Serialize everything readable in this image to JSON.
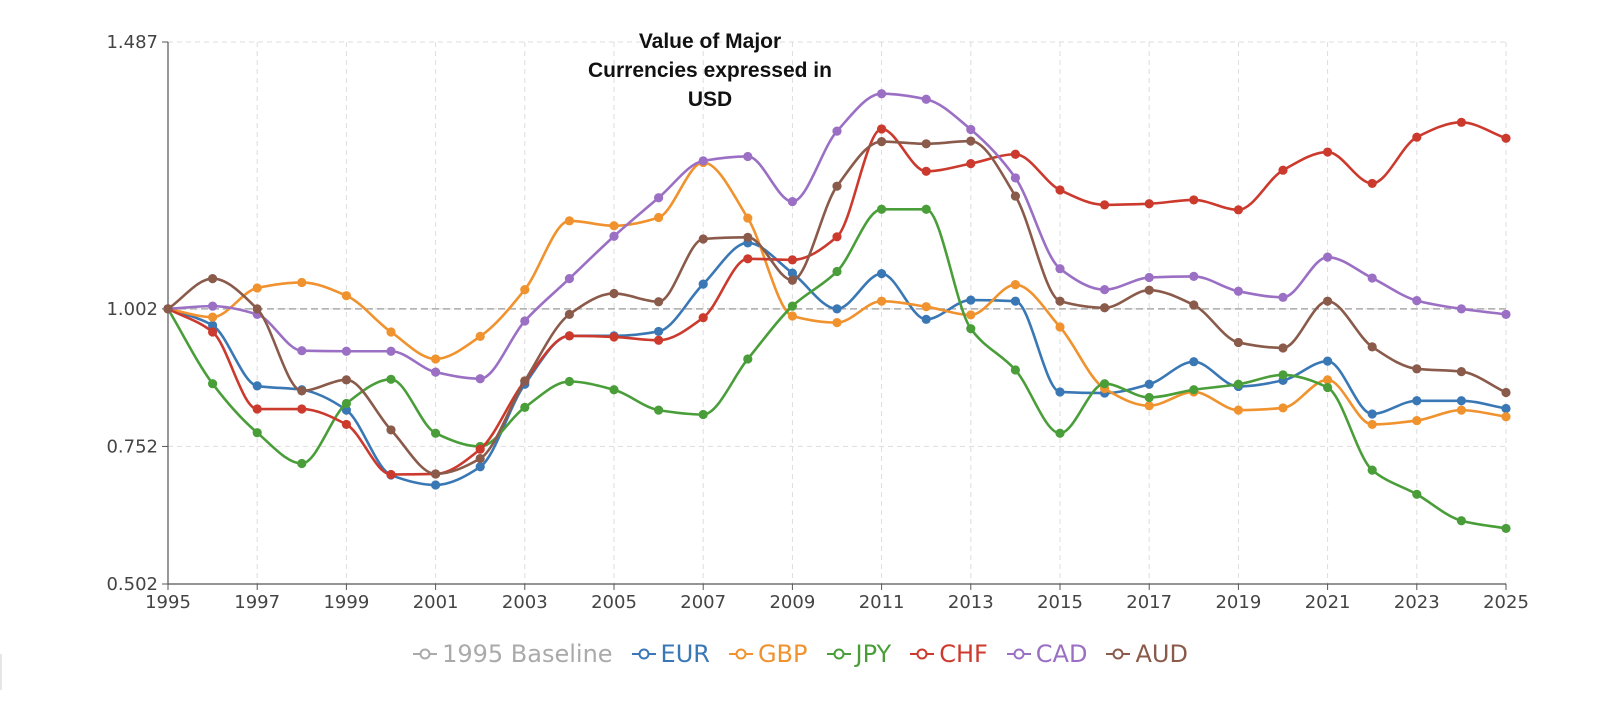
{
  "chart_data": {
    "type": "line",
    "title_lines": [
      "Value of  Major",
      "Currencies expressed in",
      "USD"
    ],
    "xlabel": "",
    "ylabel": "",
    "xlim": [
      1995,
      2025
    ],
    "ylim": [
      0.502,
      1.487
    ],
    "y_ticks": [
      "0.502",
      "0.752",
      "1.002",
      "1.487"
    ],
    "x_ticks": [
      "1995",
      "1997",
      "1999",
      "2001",
      "2003",
      "2005",
      "2007",
      "2009",
      "2011",
      "2013",
      "2015",
      "2017",
      "2019",
      "2021",
      "2023",
      "2025"
    ],
    "grid": true,
    "legend_position": "bottom-center",
    "baseline": {
      "name": "1995 Baseline",
      "value": 1.002,
      "color": "#aaaaaa"
    },
    "x": [
      1995,
      1996,
      1997,
      1998,
      1999,
      2000,
      2001,
      2002,
      2003,
      2004,
      2005,
      2006,
      2007,
      2008,
      2009,
      2010,
      2011,
      2012,
      2013,
      2014,
      2015,
      2016,
      2017,
      2018,
      2019,
      2020,
      2021,
      2022,
      2023,
      2024,
      2025
    ],
    "series": [
      {
        "name": "EUR",
        "color": "#3a78b5",
        "values": [
          1.002,
          0.972,
          0.862,
          0.855,
          0.818,
          0.7,
          0.682,
          0.715,
          0.865,
          0.953,
          0.953,
          0.961,
          1.047,
          1.122,
          1.067,
          1.002,
          1.066,
          0.983,
          1.018,
          1.016,
          0.851,
          0.849,
          0.865,
          0.906,
          0.861,
          0.872,
          0.907,
          0.811,
          0.835,
          0.835,
          0.821
        ]
      },
      {
        "name": "GBP",
        "color": "#f0922e",
        "values": [
          1.002,
          0.987,
          1.04,
          1.05,
          1.026,
          0.96,
          0.911,
          0.952,
          1.037,
          1.162,
          1.153,
          1.168,
          1.268,
          1.167,
          0.989,
          0.977,
          1.016,
          1.006,
          0.991,
          1.046,
          0.969,
          0.857,
          0.826,
          0.851,
          0.818,
          0.822,
          0.873,
          0.792,
          0.799,
          0.818,
          0.806
        ]
      },
      {
        "name": "JPY",
        "color": "#4a9e3a",
        "values": [
          1.002,
          0.866,
          0.777,
          0.721,
          0.83,
          0.874,
          0.776,
          0.752,
          0.823,
          0.87,
          0.855,
          0.818,
          0.81,
          0.911,
          1.007,
          1.07,
          1.183,
          1.183,
          0.966,
          0.891,
          0.776,
          0.866,
          0.841,
          0.855,
          0.865,
          0.882,
          0.859,
          0.709,
          0.665,
          0.617,
          0.603
        ]
      },
      {
        "name": "CHF",
        "color": "#cc3a2e",
        "values": [
          1.002,
          0.96,
          0.82,
          0.82,
          0.792,
          0.701,
          0.702,
          0.747,
          0.871,
          0.953,
          0.951,
          0.945,
          0.986,
          1.093,
          1.091,
          1.133,
          1.329,
          1.252,
          1.266,
          1.283,
          1.218,
          1.191,
          1.193,
          1.2,
          1.182,
          1.254,
          1.287,
          1.23,
          1.314,
          1.341,
          1.312
        ]
      },
      {
        "name": "CAD",
        "color": "#9a6fc4",
        "values": [
          1.002,
          1.007,
          0.992,
          0.926,
          0.925,
          0.925,
          0.887,
          0.875,
          0.98,
          1.057,
          1.134,
          1.204,
          1.271,
          1.279,
          1.197,
          1.325,
          1.393,
          1.383,
          1.328,
          1.24,
          1.075,
          1.037,
          1.059,
          1.061,
          1.034,
          1.023,
          1.096,
          1.058,
          1.017,
          1.002,
          0.992
        ]
      },
      {
        "name": "AUD",
        "color": "#8a5a4a",
        "values": [
          1.002,
          1.057,
          1.002,
          0.853,
          0.873,
          0.782,
          0.702,
          0.73,
          0.871,
          0.992,
          1.03,
          1.015,
          1.129,
          1.132,
          1.054,
          1.225,
          1.306,
          1.302,
          1.307,
          1.207,
          1.016,
          1.004,
          1.036,
          1.009,
          0.941,
          0.931,
          1.016,
          0.933,
          0.893,
          0.888,
          0.85
        ]
      }
    ]
  },
  "legend": {
    "baseline_label": "1995 Baseline",
    "items": [
      "EUR",
      "GBP",
      "JPY",
      "CHF",
      "CAD",
      "AUD"
    ]
  }
}
